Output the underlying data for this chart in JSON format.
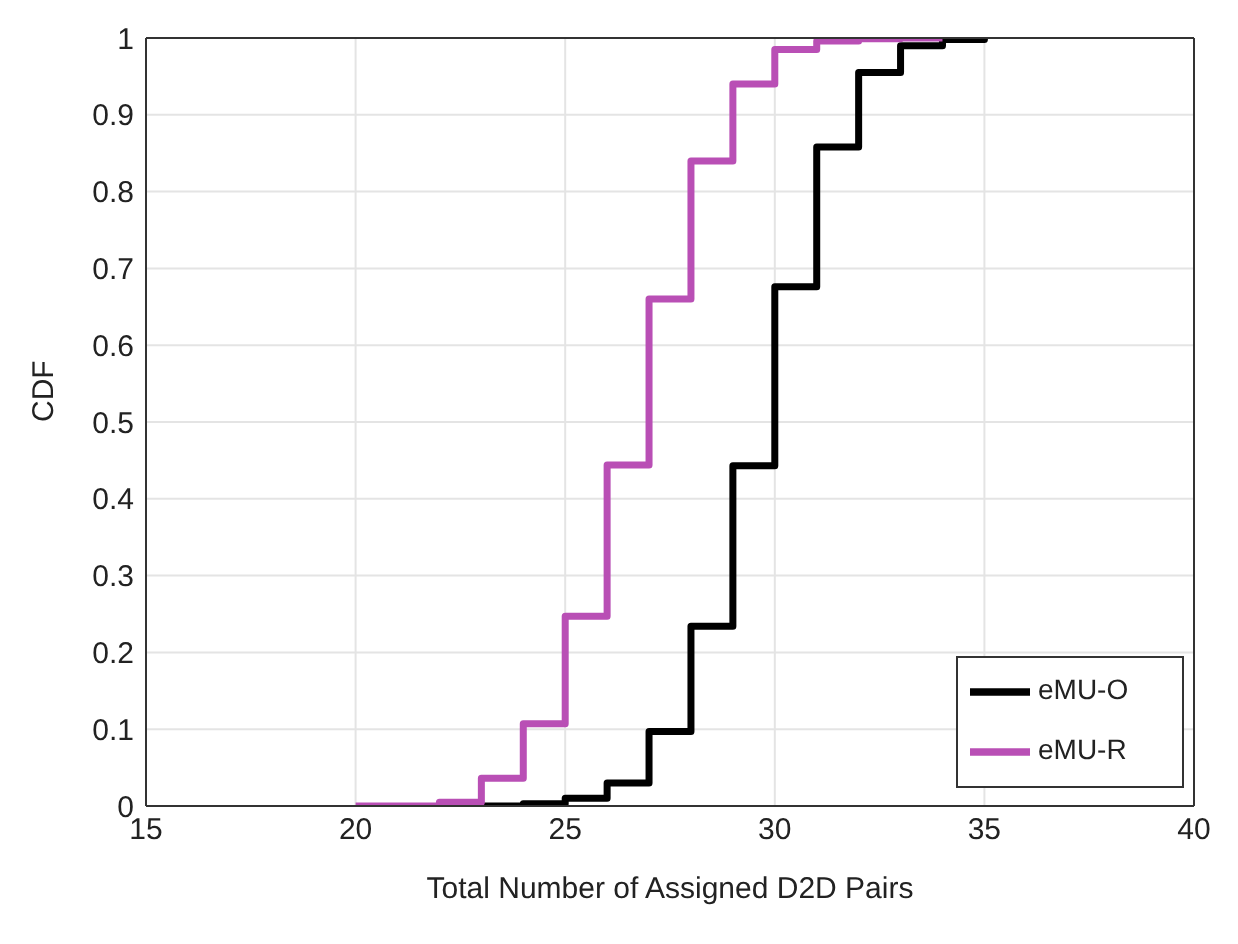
{
  "chart_data": {
    "type": "step",
    "xlabel": "Total Number of Assigned D2D Pairs",
    "ylabel": "CDF",
    "xlim": [
      15,
      40
    ],
    "xticks": [
      15,
      20,
      25,
      30,
      35,
      40
    ],
    "ylim": [
      0,
      1
    ],
    "yticks": [
      0,
      0.1,
      0.2,
      0.3,
      0.4,
      0.5,
      0.6,
      0.7,
      0.8,
      0.9,
      1
    ],
    "grid": true,
    "legend": "bottom right",
    "marker": "none",
    "line_style": "solid",
    "series": [
      {
        "name": "eMU-O",
        "color": "#000000",
        "x": [
          22,
          24,
          25,
          26,
          27,
          28,
          29,
          30,
          31,
          32,
          33,
          34,
          35
        ],
        "values": [
          0,
          0.003,
          0.01,
          0.03,
          0.097,
          0.234,
          0.443,
          0.676,
          0.858,
          0.955,
          0.99,
          0.998,
          1
        ]
      },
      {
        "name": "eMU-R",
        "color": "#b94fb5",
        "x": [
          20,
          22,
          23,
          24,
          25,
          26,
          27,
          28,
          29,
          30,
          31,
          32,
          33,
          34
        ],
        "values": [
          0,
          0.005,
          0.036,
          0.107,
          0.247,
          0.444,
          0.66,
          0.84,
          0.94,
          0.985,
          0.996,
          0.999,
          1,
          1
        ]
      }
    ]
  }
}
